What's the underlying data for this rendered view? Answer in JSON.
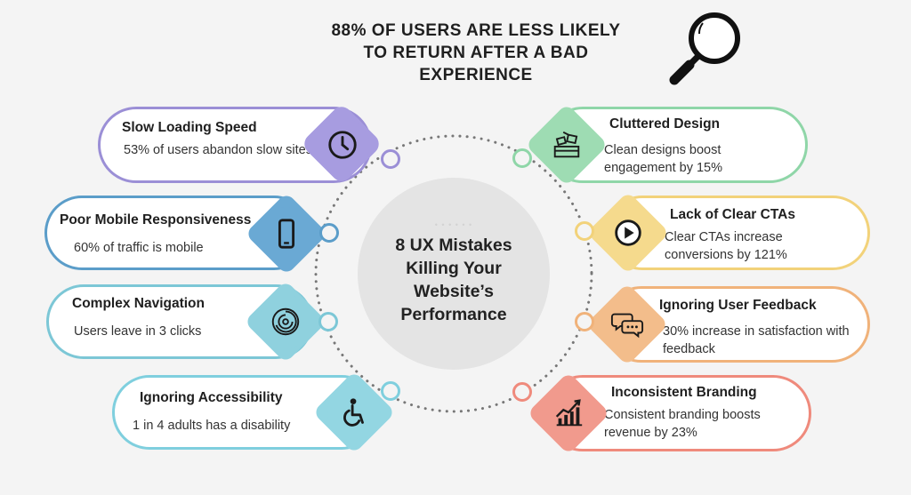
{
  "headline": {
    "line1": "88% OF USERS ARE LESS LIKELY",
    "line2": "TO RETURN AFTER A BAD",
    "line3": "EXPERIENCE"
  },
  "center": {
    "line1": "8 UX Mistakes",
    "line2": "Killing Your",
    "line3": "Website’s",
    "line4": "Performance"
  },
  "colors": {
    "purple": "#9b8fd6",
    "blue": "#5b9dc9",
    "teal": "#7cc7d6",
    "cyan": "#7fcfde",
    "green": "#8fd6a8",
    "yellow": "#f2d27a",
    "orange": "#f0b27a",
    "red": "#ef8a7c"
  },
  "left": [
    {
      "title": "Slow Loading Speed",
      "desc": "53% of users abandon slow sites",
      "icon": "clock-icon"
    },
    {
      "title": "Poor Mobile Responsiveness",
      "desc": "60% of traffic is mobile",
      "icon": "smartphone-icon"
    },
    {
      "title": "Complex Navigation",
      "desc": "Users leave in 3 clicks",
      "icon": "maze-icon"
    },
    {
      "title": "Ignoring Accessibility",
      "desc": "1 in 4 adults has a disability",
      "icon": "wheelchair-icon"
    }
  ],
  "right": [
    {
      "title": "Cluttered Design",
      "desc": "Clean designs boost engagement by 15%",
      "icon": "cluttered-desk-icon"
    },
    {
      "title": "Lack of Clear CTAs",
      "desc": "Clear CTAs increase conversions by 121%",
      "icon": "play-button-icon"
    },
    {
      "title": "Ignoring User Feedback",
      "desc": "30% increase in satisfaction with feedback",
      "icon": "chat-bubbles-icon"
    },
    {
      "title": "Inconsistent Branding",
      "desc": "Consistent branding boosts revenue by 23%",
      "icon": "growth-chart-icon"
    }
  ]
}
